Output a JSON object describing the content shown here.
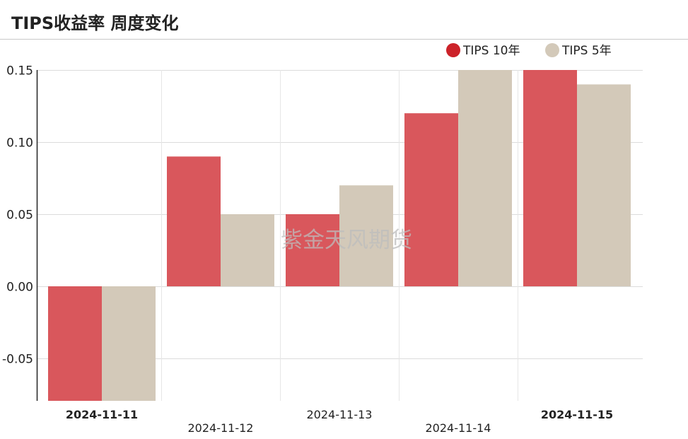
{
  "header": {
    "title": "TIPS收益率 周度变化"
  },
  "watermark": "紫金天风期货",
  "chart_data": {
    "type": "bar",
    "categories": [
      "2024-11-11",
      "2024-11-12",
      "2024-11-13",
      "2024-11-14",
      "2024-11-15"
    ],
    "bold_categories": [
      "2024-11-11",
      "2024-11-15"
    ],
    "series": [
      {
        "name": "TIPS 10年",
        "color": "#d9575c",
        "legend_color": "#cc2229",
        "values": [
          -0.08,
          0.09,
          0.05,
          0.12,
          0.15
        ]
      },
      {
        "name": "TIPS 5年",
        "color": "#d3c9b9",
        "legend_color": "#d3c9b9",
        "values": [
          -0.08,
          0.05,
          0.07,
          0.15,
          0.14
        ]
      }
    ],
    "y_ticks": [
      "0.15",
      "0.10",
      "0.05",
      "0.00",
      "-0.05"
    ],
    "y_tick_values": [
      0.15,
      0.1,
      0.05,
      0.0,
      -0.05
    ],
    "ylim": [
      -0.08,
      0.15
    ],
    "grid": true,
    "legend_position": "top-right"
  }
}
